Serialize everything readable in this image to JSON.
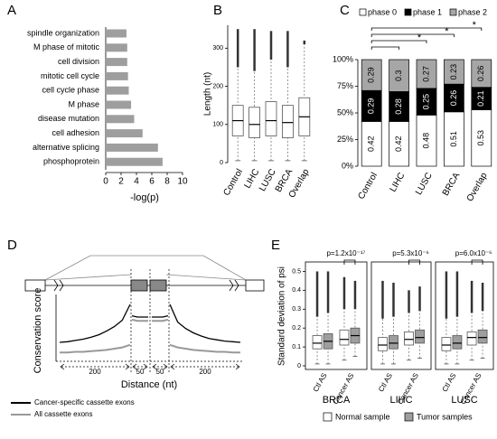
{
  "chart_data": [
    {
      "panel": "A",
      "type": "hbar",
      "categories": [
        "spindle organization",
        "M phase of mitotic",
        "cell division",
        "mitotic cell cycle",
        "cell cycle phase",
        "M phase",
        "disease mutation",
        "cell adhesion",
        "alternative splicing",
        "phosphoprotein"
      ],
      "values": [
        2.7,
        2.8,
        2.8,
        2.9,
        3.0,
        3.3,
        3.7,
        4.8,
        6.8,
        7.4
      ],
      "color": "#9e9e9e",
      "xlim": [
        0,
        10
      ],
      "xticks": [
        0,
        2,
        4,
        6,
        8,
        10
      ],
      "xlabel": "-log(p)"
    },
    {
      "panel": "B",
      "type": "box",
      "categories": [
        "Control",
        "LIHC",
        "LUSC",
        "BRCA",
        "Overlap"
      ],
      "ylabel": "Length (nt)",
      "ylim": [
        0,
        360
      ],
      "yticks": [
        0,
        100,
        200,
        300
      ],
      "color": "#ffffff",
      "boxes": [
        {
          "low": 5,
          "q1": 70,
          "median": 110,
          "q3": 150,
          "high": 250,
          "max": 350
        },
        {
          "low": 5,
          "q1": 65,
          "median": 100,
          "q3": 145,
          "high": 240,
          "max": 350
        },
        {
          "low": 5,
          "q1": 70,
          "median": 110,
          "q3": 160,
          "high": 270,
          "max": 345
        },
        {
          "low": 5,
          "q1": 65,
          "median": 105,
          "q3": 150,
          "high": 250,
          "max": 345
        },
        {
          "low": 5,
          "q1": 70,
          "median": 120,
          "q3": 170,
          "high": 310,
          "max": 320
        }
      ]
    },
    {
      "panel": "C",
      "type": "stacked_bar",
      "categories": [
        "Control",
        "LIHC",
        "LUSC",
        "BRCA",
        "Overlap"
      ],
      "series": [
        {
          "name": "phase 0",
          "color": "#ffffff",
          "values": [
            42,
            42,
            48,
            51,
            53
          ],
          "value_labels": [
            "0.42",
            "0.42",
            "0.48",
            "0.51",
            "0.53"
          ]
        },
        {
          "name": "phase 1",
          "color": "#000000",
          "values": [
            29,
            28,
            25,
            26,
            21
          ],
          "value_labels": [
            "0.29",
            "0.28",
            "0.25",
            "0.26",
            "0.21"
          ]
        },
        {
          "name": "phase 2",
          "color": "#a6a6a6",
          "values": [
            29,
            30,
            27,
            23,
            26
          ],
          "value_labels": [
            "0.29",
            "0.3",
            "0.27",
            "0.23",
            "0.26"
          ]
        }
      ],
      "ylim": [
        0,
        100
      ],
      "yticks": [
        {
          "value": 0,
          "label": "0%"
        },
        {
          "value": 25,
          "label": "25%"
        },
        {
          "value": 50,
          "label": "50%"
        },
        {
          "value": 75,
          "label": "75%"
        },
        {
          "value": 100,
          "label": "100%"
        }
      ],
      "brackets": [
        {
          "from": "Control",
          "to": "LIHC"
        },
        {
          "from": "Control",
          "to": "LUSC",
          "label": "*"
        },
        {
          "from": "Control",
          "to": "BRCA",
          "label": "*"
        },
        {
          "from": "Control",
          "to": "Overlap",
          "label": "*"
        }
      ]
    },
    {
      "panel": "D",
      "type": "line",
      "ylabel": "Conservation score",
      "xlabel": "Distance (nt)",
      "ylim": [
        0,
        1
      ],
      "segments": [
        "200",
        "50",
        "50",
        "200"
      ],
      "series": [
        {
          "name": "Cancer-specific cassette exons",
          "color": "#000000",
          "values": [
            [
              0.3,
              0.31,
              0.33,
              0.35,
              0.38,
              0.42,
              0.48,
              0.55,
              0.65,
              0.9
            ],
            [
              0.72,
              0.7,
              0.7,
              0.7
            ],
            [
              0.7,
              0.7,
              0.7,
              0.72
            ],
            [
              0.9,
              0.62,
              0.52,
              0.45,
              0.4,
              0.36,
              0.34,
              0.32,
              0.31,
              0.3
            ]
          ]
        },
        {
          "name": "All cassette exons",
          "color": "#999999",
          "values": [
            [
              0.14,
              0.14,
              0.15,
              0.15,
              0.16,
              0.17,
              0.18,
              0.2,
              0.22,
              0.26
            ],
            [
              0.66,
              0.64,
              0.64,
              0.64
            ],
            [
              0.64,
              0.64,
              0.64,
              0.66
            ],
            [
              0.26,
              0.22,
              0.2,
              0.18,
              0.17,
              0.16,
              0.15,
              0.15,
              0.14,
              0.14
            ]
          ]
        }
      ]
    },
    {
      "panel": "E",
      "type": "grouped_box",
      "ylabel": "Standard deviation of psi",
      "ylim": [
        0,
        0.55
      ],
      "yticks": [
        0,
        0.1,
        0.2,
        0.3,
        0.4,
        0.5
      ],
      "groups": [
        "Ctl AS",
        "Cancer AS"
      ],
      "series": [
        {
          "name": "Normal sample",
          "color": "#ffffff"
        },
        {
          "name": "Tumor samples",
          "color": "#9e9e9e"
        }
      ],
      "panels": [
        {
          "title": "BRCA",
          "p_label": "p=1.2x10⁻¹⁷",
          "boxes": [
            [
              {
                "low": 0.01,
                "q1": 0.09,
                "median": 0.12,
                "q3": 0.16,
                "high": 0.26,
                "max": 0.5
              },
              {
                "low": 0.01,
                "q1": 0.09,
                "median": 0.13,
                "q3": 0.17,
                "high": 0.28,
                "max": 0.5
              }
            ],
            [
              {
                "low": 0.03,
                "q1": 0.11,
                "median": 0.14,
                "q3": 0.19,
                "high": 0.3,
                "max": 0.47
              },
              {
                "low": 0.05,
                "q1": 0.12,
                "median": 0.16,
                "q3": 0.2,
                "high": 0.3,
                "max": 0.45
              }
            ]
          ]
        },
        {
          "title": "LIHC",
          "p_label": "p=5.3x10⁻⁶",
          "boxes": [
            [
              {
                "low": 0.01,
                "q1": 0.08,
                "median": 0.11,
                "q3": 0.15,
                "high": 0.25,
                "max": 0.45
              },
              {
                "low": 0.01,
                "q1": 0.09,
                "median": 0.12,
                "q3": 0.16,
                "high": 0.26,
                "max": 0.44
              }
            ],
            [
              {
                "low": 0.03,
                "q1": 0.11,
                "median": 0.14,
                "q3": 0.18,
                "high": 0.28,
                "max": 0.4
              },
              {
                "low": 0.04,
                "q1": 0.12,
                "median": 0.15,
                "q3": 0.19,
                "high": 0.29,
                "max": 0.42
              }
            ]
          ]
        },
        {
          "title": "LUSC",
          "p_label": "p=6.0x10⁻⁶",
          "boxes": [
            [
              {
                "low": 0.01,
                "q1": 0.08,
                "median": 0.11,
                "q3": 0.15,
                "high": 0.25,
                "max": 0.5
              },
              {
                "low": 0.01,
                "q1": 0.09,
                "median": 0.12,
                "q3": 0.16,
                "high": 0.26,
                "max": 0.5
              }
            ],
            [
              {
                "low": 0.03,
                "q1": 0.11,
                "median": 0.15,
                "q3": 0.18,
                "high": 0.28,
                "max": 0.45
              },
              {
                "low": 0.04,
                "q1": 0.12,
                "median": 0.15,
                "q3": 0.19,
                "high": 0.29,
                "max": 0.44
              }
            ]
          ]
        }
      ]
    }
  ]
}
